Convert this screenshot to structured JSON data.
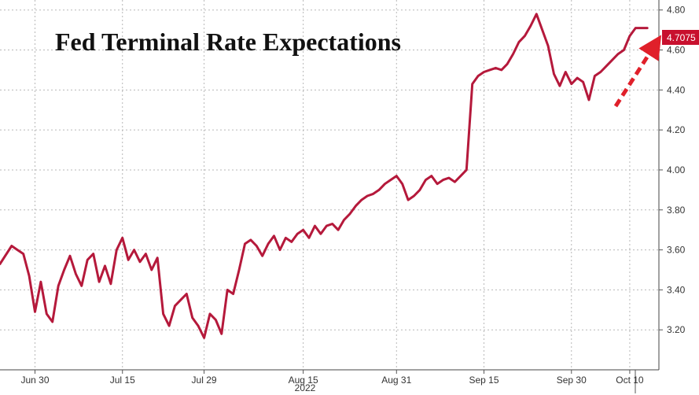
{
  "chart_data": {
    "type": "line",
    "title": "Fed Terminal Rate Expectations",
    "xlabel": "",
    "ylabel": "",
    "year_label": "2022",
    "x_tick_labels": [
      "Jun 30",
      "Jul 15",
      "Jul 29",
      "Aug 15",
      "Aug 31",
      "Sep 15",
      "Sep 30",
      "Oct 10"
    ],
    "y_tick_labels": [
      "3.20",
      "3.40",
      "3.60",
      "3.80",
      "4.00",
      "4.20",
      "4.40",
      "4.60",
      "4.80"
    ],
    "ylim": [
      3.0,
      4.85
    ],
    "xlim": [
      "2022-06-24",
      "2022-10-15"
    ],
    "grid": true,
    "y_axis_side": "right",
    "last_value_label": "4.7075",
    "series": [
      {
        "color": "#b5193b",
        "x": [
          "2022-06-24",
          "2022-06-26",
          "2022-06-27",
          "2022-06-28",
          "2022-06-29",
          "2022-06-30",
          "2022-07-01",
          "2022-07-02",
          "2022-07-03",
          "2022-07-04",
          "2022-07-05",
          "2022-07-06",
          "2022-07-07",
          "2022-07-08",
          "2022-07-09",
          "2022-07-10",
          "2022-07-11",
          "2022-07-12",
          "2022-07-13",
          "2022-07-14",
          "2022-07-15",
          "2022-07-16",
          "2022-07-17",
          "2022-07-18",
          "2022-07-19",
          "2022-07-20",
          "2022-07-21",
          "2022-07-22",
          "2022-07-23",
          "2022-07-24",
          "2022-07-25",
          "2022-07-26",
          "2022-07-27",
          "2022-07-28",
          "2022-07-29",
          "2022-07-30",
          "2022-07-31",
          "2022-08-01",
          "2022-08-02",
          "2022-08-03",
          "2022-08-04",
          "2022-08-05",
          "2022-08-06",
          "2022-08-07",
          "2022-08-08",
          "2022-08-09",
          "2022-08-10",
          "2022-08-11",
          "2022-08-12",
          "2022-08-13",
          "2022-08-14",
          "2022-08-15",
          "2022-08-16",
          "2022-08-17",
          "2022-08-18",
          "2022-08-19",
          "2022-08-20",
          "2022-08-21",
          "2022-08-22",
          "2022-08-23",
          "2022-08-24",
          "2022-08-25",
          "2022-08-26",
          "2022-08-27",
          "2022-08-28",
          "2022-08-29",
          "2022-08-30",
          "2022-08-31",
          "2022-09-01",
          "2022-09-02",
          "2022-09-03",
          "2022-09-04",
          "2022-09-05",
          "2022-09-06",
          "2022-09-07",
          "2022-09-08",
          "2022-09-09",
          "2022-09-10",
          "2022-09-11",
          "2022-09-12",
          "2022-09-13",
          "2022-09-14",
          "2022-09-15",
          "2022-09-16",
          "2022-09-17",
          "2022-09-18",
          "2022-09-19",
          "2022-09-20",
          "2022-09-21",
          "2022-09-22",
          "2022-09-23",
          "2022-09-24",
          "2022-09-25",
          "2022-09-26",
          "2022-09-27",
          "2022-09-28",
          "2022-09-29",
          "2022-09-30",
          "2022-10-01",
          "2022-10-02",
          "2022-10-03",
          "2022-10-04",
          "2022-10-05",
          "2022-10-06",
          "2022-10-07",
          "2022-10-08",
          "2022-10-09",
          "2022-10-10",
          "2022-10-11",
          "2022-10-12",
          "2022-10-13"
        ],
        "values": [
          3.53,
          3.62,
          3.6,
          3.58,
          3.47,
          3.29,
          3.44,
          3.28,
          3.24,
          3.42,
          3.5,
          3.57,
          3.48,
          3.42,
          3.55,
          3.58,
          3.44,
          3.52,
          3.43,
          3.6,
          3.66,
          3.55,
          3.6,
          3.54,
          3.58,
          3.5,
          3.56,
          3.28,
          3.22,
          3.32,
          3.35,
          3.38,
          3.26,
          3.22,
          3.16,
          3.28,
          3.25,
          3.18,
          3.4,
          3.38,
          3.5,
          3.63,
          3.65,
          3.62,
          3.57,
          3.63,
          3.67,
          3.6,
          3.66,
          3.64,
          3.68,
          3.7,
          3.66,
          3.72,
          3.68,
          3.72,
          3.73,
          3.7,
          3.75,
          3.78,
          3.82,
          3.85,
          3.87,
          3.88,
          3.9,
          3.93,
          3.95,
          3.97,
          3.93,
          3.85,
          3.87,
          3.9,
          3.95,
          3.97,
          3.93,
          3.95,
          3.96,
          3.94,
          3.97,
          4.0,
          4.43,
          4.47,
          4.49,
          4.5,
          4.51,
          4.5,
          4.53,
          4.58,
          4.64,
          4.67,
          4.72,
          4.78,
          4.7,
          4.62,
          4.48,
          4.42,
          4.49,
          4.43,
          4.46,
          4.44,
          4.35,
          4.47,
          4.49,
          4.52,
          4.55,
          4.58,
          4.6,
          4.67,
          4.71,
          4.71,
          4.71
        ]
      }
    ]
  }
}
